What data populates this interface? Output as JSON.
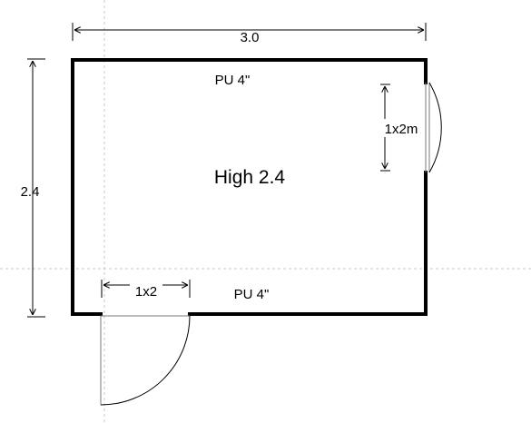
{
  "dimensions": {
    "width_label": "3.0",
    "height_label": "2.4"
  },
  "room": {
    "ceiling_label": "High 2.4"
  },
  "walls": {
    "top_label": "PU 4\"",
    "bottom_label": "PU 4\""
  },
  "doors": {
    "right_door_label": "1x2m",
    "bottom_door_label": "1x2"
  },
  "colors": {
    "wall": "#000000",
    "guide": "#c8c8c8",
    "background": "#ffffff"
  }
}
